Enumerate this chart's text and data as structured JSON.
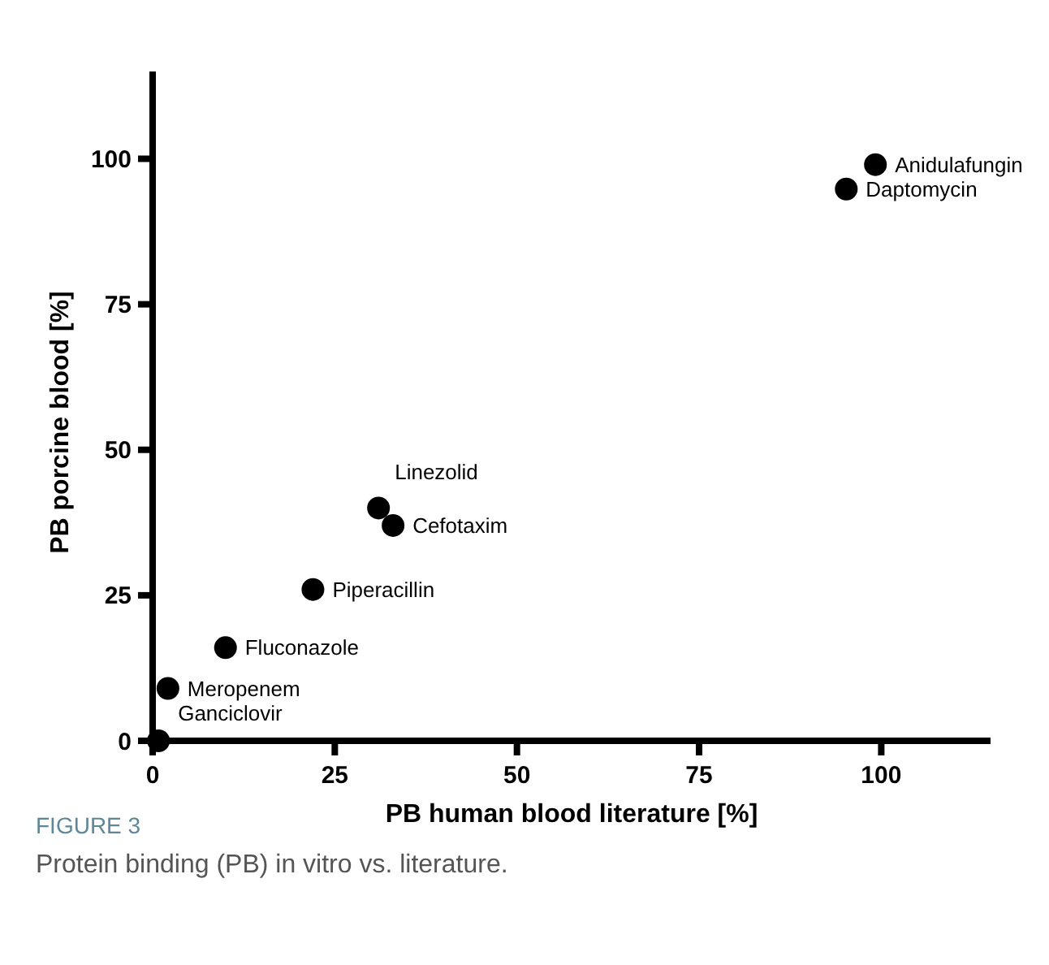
{
  "chart_data": {
    "type": "scatter",
    "xlabel": "PB human blood literature [%]",
    "ylabel": "PB porcine blood [%]",
    "x": [
      99.2,
      95.2,
      31,
      33,
      22,
      10,
      2.1,
      0.8
    ],
    "series": [
      {
        "color": "#000000",
        "values": [
          99,
          94.8,
          40,
          37,
          26,
          16,
          9,
          0
        ]
      }
    ],
    "marker": "circle",
    "xlim": [
      0,
      115
    ],
    "ylim": [
      0,
      115
    ],
    "xticks": [
      0,
      25,
      50,
      75,
      100
    ],
    "yticks": [
      0,
      25,
      50,
      75,
      100
    ],
    "grid": false,
    "annotations": [
      {
        "text": "Anidulafungin",
        "x": 99.2,
        "y": 99
      },
      {
        "text": "Daptomycin",
        "x": 95.2,
        "y": 94.8
      },
      {
        "text": "Linezolid",
        "x": 31,
        "y": 40
      },
      {
        "text": "Cefotaxim",
        "x": 33,
        "y": 37
      },
      {
        "text": "Piperacillin",
        "x": 22,
        "y": 26
      },
      {
        "text": "Fluconazole",
        "x": 10,
        "y": 16
      },
      {
        "text": "Meropenem",
        "x": 2.1,
        "y": 9
      },
      {
        "text": "Ganciclovir",
        "x": 0.8,
        "y": 0
      },
      "FIGURE 3",
      "Protein binding (PB) in vitro vs. literature."
    ]
  }
}
